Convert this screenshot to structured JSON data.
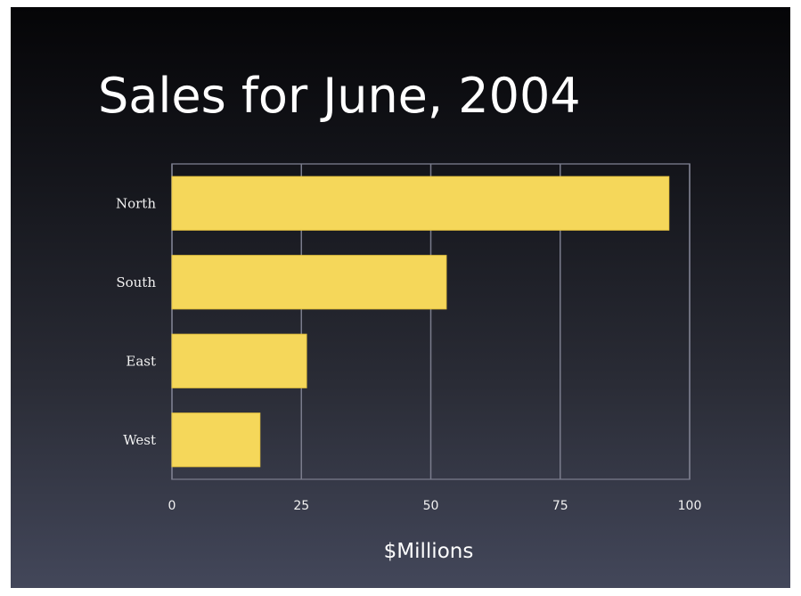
{
  "chart_data": {
    "type": "bar",
    "orientation": "horizontal",
    "title": "Sales for June, 2004",
    "xlabel": "$Millions",
    "ylabel": "",
    "categories": [
      "North",
      "South",
      "East",
      "West"
    ],
    "values": [
      96,
      53,
      26,
      17
    ],
    "xlim": [
      0,
      100
    ],
    "ticks": [
      0,
      25,
      50,
      75,
      100
    ],
    "grid": true,
    "bar_color": "#f5d75a",
    "background_top": "#050507",
    "background_bottom": "#43475a"
  }
}
